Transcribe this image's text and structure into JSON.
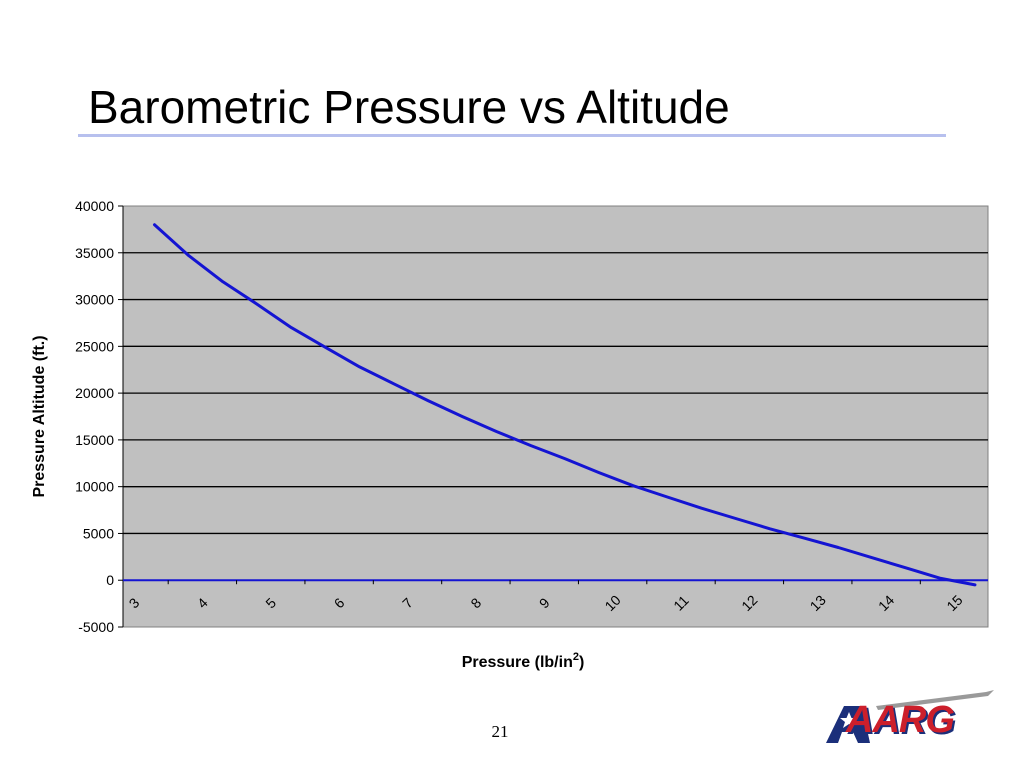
{
  "slide": {
    "title": "Barometric Pressure vs Altitude",
    "page_number": "21",
    "logo_text": "AARG"
  },
  "colors": {
    "plot_background": "#c0c0c0",
    "gridline": "#000000",
    "series_line": "#1414d2",
    "title_rule": "#b7c0ee",
    "logo_red": "#cc1f2b",
    "logo_blue": "#1b2f7a"
  },
  "chart_data": {
    "type": "line",
    "title": "",
    "xlabel": "Pressure (lb/in",
    "xlabel_superscript": "2",
    "xlabel_suffix": ")",
    "ylabel": "Pressure Altitude (ft.)",
    "xlim": [
      3,
      15.3
    ],
    "ylim": [
      -5000,
      40000
    ],
    "x_ticks": [
      3,
      4,
      5,
      6,
      7,
      8,
      9,
      10,
      11,
      12,
      13,
      14,
      15
    ],
    "x_tick_labels": [
      "3",
      "4",
      "5",
      "6",
      "7",
      "8",
      "9",
      "10",
      "11",
      "12",
      "13",
      "14",
      "15"
    ],
    "y_ticks": [
      -5000,
      0,
      5000,
      10000,
      15000,
      20000,
      25000,
      30000,
      35000,
      40000
    ],
    "y_tick_labels": [
      "-5000",
      "0",
      "5000",
      "10000",
      "15000",
      "20000",
      "25000",
      "30000",
      "35000",
      "40000"
    ],
    "grid": true,
    "legend": "none",
    "series": [
      {
        "x": [
          3.3,
          3.8,
          4.3,
          4.8,
          5.3,
          5.8,
          6.3,
          6.8,
          7.3,
          7.8,
          8.3,
          8.8,
          9.3,
          9.8,
          10.3,
          10.8,
          11.3,
          11.8,
          12.3,
          12.8,
          13.3,
          13.8,
          14.3,
          14.8,
          15.3
        ],
        "y": [
          38000,
          34700,
          31900,
          29500,
          27000,
          24900,
          22800,
          21000,
          19200,
          17500,
          15900,
          14400,
          13000,
          11500,
          10100,
          8900,
          7700,
          6600,
          5500,
          4500,
          3500,
          2400,
          1300,
          200,
          -500
        ]
      }
    ]
  }
}
